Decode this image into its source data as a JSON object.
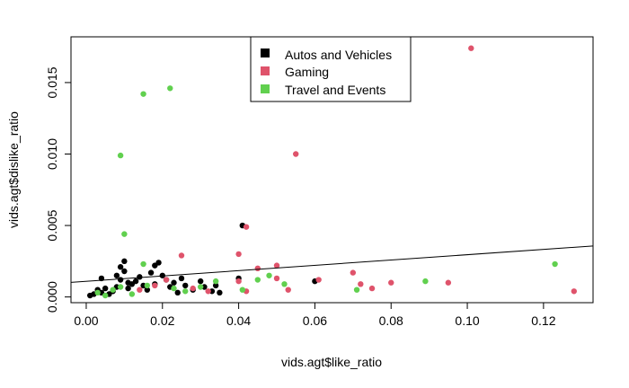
{
  "chart_data": {
    "type": "scatter",
    "title": "",
    "xlabel": "vids.agt$like_ratio",
    "ylabel": "vids.agt$dislike_ratio",
    "xlim": [
      -0.004,
      0.133
    ],
    "ylim": [
      -0.0004,
      0.0182
    ],
    "xticks": [
      0.0,
      0.02,
      0.04,
      0.06,
      0.08,
      0.1,
      0.12
    ],
    "xtick_labels": [
      "0.00",
      "0.02",
      "0.04",
      "0.06",
      "0.08",
      "0.10",
      "0.12"
    ],
    "yticks": [
      0.0,
      0.005,
      0.01,
      0.015
    ],
    "ytick_labels": [
      "0.000",
      "0.005",
      "0.010",
      "0.015"
    ],
    "grid": false,
    "legend_position": "top-center",
    "series": [
      {
        "name": "Autos and Vehicles",
        "color": "#000000",
        "points": [
          [
            0.001,
            0.0001
          ],
          [
            0.002,
            0.0002
          ],
          [
            0.003,
            0.0005
          ],
          [
            0.004,
            0.0013
          ],
          [
            0.004,
            0.0003
          ],
          [
            0.005,
            0.0006
          ],
          [
            0.006,
            0.0002
          ],
          [
            0.007,
            0.0004
          ],
          [
            0.008,
            0.0007
          ],
          [
            0.008,
            0.0015
          ],
          [
            0.009,
            0.0021
          ],
          [
            0.009,
            0.0012
          ],
          [
            0.01,
            0.0018
          ],
          [
            0.01,
            0.0025
          ],
          [
            0.011,
            0.001
          ],
          [
            0.011,
            0.0006
          ],
          [
            0.012,
            0.0009
          ],
          [
            0.013,
            0.0011
          ],
          [
            0.014,
            0.0014
          ],
          [
            0.015,
            0.0008
          ],
          [
            0.016,
            0.0005
          ],
          [
            0.017,
            0.0017
          ],
          [
            0.018,
            0.0022
          ],
          [
            0.018,
            0.0009
          ],
          [
            0.019,
            0.0024
          ],
          [
            0.02,
            0.0015
          ],
          [
            0.021,
            0.0012
          ],
          [
            0.022,
            0.0007
          ],
          [
            0.023,
            0.001
          ],
          [
            0.024,
            0.0003
          ],
          [
            0.025,
            0.0013
          ],
          [
            0.026,
            0.0008
          ],
          [
            0.028,
            0.0005
          ],
          [
            0.03,
            0.0011
          ],
          [
            0.031,
            0.0007
          ],
          [
            0.033,
            0.0004
          ],
          [
            0.034,
            0.0008
          ],
          [
            0.035,
            0.0003
          ],
          [
            0.04,
            0.0013
          ],
          [
            0.041,
            0.005
          ],
          [
            0.06,
            0.0011
          ]
        ]
      },
      {
        "name": "Gaming",
        "color": "#df536b",
        "points": [
          [
            0.014,
            0.0005
          ],
          [
            0.018,
            0.0008
          ],
          [
            0.021,
            0.0012
          ],
          [
            0.025,
            0.0029
          ],
          [
            0.028,
            0.0006
          ],
          [
            0.032,
            0.0004
          ],
          [
            0.04,
            0.003
          ],
          [
            0.04,
            0.0011
          ],
          [
            0.042,
            0.0049
          ],
          [
            0.042,
            0.0004
          ],
          [
            0.045,
            0.002
          ],
          [
            0.05,
            0.0022
          ],
          [
            0.05,
            0.0013
          ],
          [
            0.053,
            0.0005
          ],
          [
            0.055,
            0.01
          ],
          [
            0.061,
            0.0012
          ],
          [
            0.07,
            0.0017
          ],
          [
            0.072,
            0.0009
          ],
          [
            0.075,
            0.0006
          ],
          [
            0.08,
            0.001
          ],
          [
            0.095,
            0.001
          ],
          [
            0.101,
            0.0174
          ],
          [
            0.128,
            0.0004
          ]
        ]
      },
      {
        "name": "Travel and Events",
        "color": "#61d04f",
        "points": [
          [
            0.003,
            0.0003
          ],
          [
            0.005,
            0.0001
          ],
          [
            0.007,
            0.0005
          ],
          [
            0.009,
            0.0099
          ],
          [
            0.009,
            0.0007
          ],
          [
            0.01,
            0.0044
          ],
          [
            0.012,
            0.0002
          ],
          [
            0.015,
            0.0142
          ],
          [
            0.015,
            0.0023
          ],
          [
            0.016,
            0.0008
          ],
          [
            0.022,
            0.0146
          ],
          [
            0.023,
            0.0006
          ],
          [
            0.026,
            0.0004
          ],
          [
            0.03,
            0.0007
          ],
          [
            0.034,
            0.0011
          ],
          [
            0.041,
            0.0005
          ],
          [
            0.045,
            0.0012
          ],
          [
            0.048,
            0.0015
          ],
          [
            0.052,
            0.0009
          ],
          [
            0.071,
            0.0005
          ],
          [
            0.089,
            0.0011
          ],
          [
            0.123,
            0.0023
          ]
        ]
      }
    ],
    "trend_line": {
      "x": [
        -0.004,
        0.133
      ],
      "y": [
        0.00102,
        0.00357
      ]
    }
  }
}
